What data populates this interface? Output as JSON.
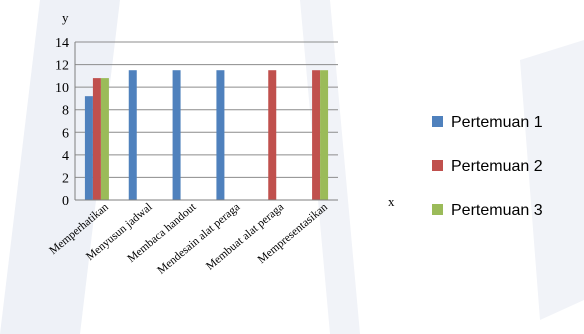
{
  "chart_data": {
    "type": "bar",
    "categories": [
      "Memperhatikan",
      "Menyusun jadwal",
      "Membaca handout",
      "Mendesain alat peraga",
      "Membuat alat peraga",
      "Mempresentasikan"
    ],
    "series": [
      {
        "name": "Pertemuan 1",
        "color": "#4F81BD",
        "values": [
          9.2,
          11.5,
          11.5,
          11.5,
          0,
          0
        ]
      },
      {
        "name": "Pertemuan 2",
        "color": "#C0504D",
        "values": [
          10.8,
          0,
          0,
          0,
          11.5,
          11.5
        ]
      },
      {
        "name": "Pertemuan 3",
        "color": "#9BBB59",
        "values": [
          10.8,
          0,
          0,
          0,
          0,
          11.5
        ]
      }
    ],
    "xlabel": "x",
    "ylabel": "y",
    "ylim": [
      0,
      14
    ],
    "yticks": [
      0,
      2,
      4,
      6,
      8,
      10,
      12,
      14
    ],
    "grid": true,
    "legend": "right"
  }
}
